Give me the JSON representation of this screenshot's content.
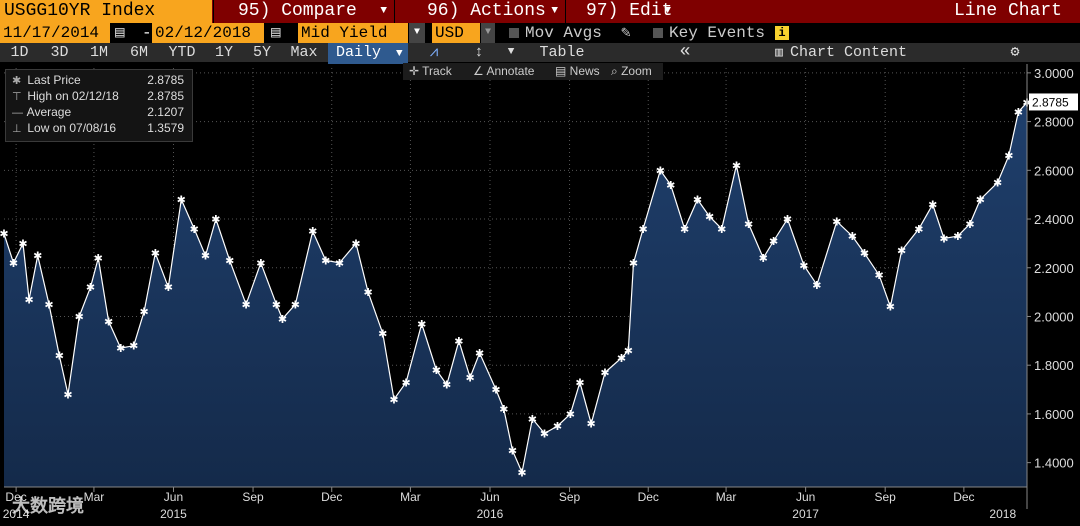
{
  "toolbar": {
    "ticker": "USGG10YR Index",
    "compare": "95) Compare",
    "actions": "96) Actions",
    "edit": "97) Edit",
    "chart_kind": "Line Chart"
  },
  "settings": {
    "start_date": "11/17/2014",
    "end_date": "02/12/2018",
    "dash": "-",
    "field": "Mid Yield",
    "currency": "USD",
    "mov_avgs": "Mov Avgs",
    "key_events": "Key Events",
    "info": "i"
  },
  "periods": {
    "items": [
      "1D",
      "3D",
      "1M",
      "6M",
      "YTD",
      "1Y",
      "5Y",
      "Max"
    ],
    "frequency": "Daily",
    "table": "Table",
    "back": "«",
    "chart_content": "Chart Content",
    "gear": "⚙"
  },
  "tools": {
    "track": "Track",
    "annotate": "Annotate",
    "news": "News",
    "zoom": "Zoom"
  },
  "legend": [
    {
      "label": "Last Price",
      "value": "2.8785",
      "icon": "asterisk-icon"
    },
    {
      "label": "High on 02/12/18",
      "value": "2.8785",
      "icon": "high-marker-icon"
    },
    {
      "label": "Average",
      "value": "2.1207",
      "icon": "average-line-icon"
    },
    {
      "label": "Low on 07/08/16",
      "value": "1.3579",
      "icon": "low-marker-icon"
    }
  ],
  "watermark": "大数跨境",
  "colors": {
    "accent": "#f8a51e",
    "header_red": "#7f0000",
    "area_top": "#1f3f6c",
    "line": "#ffffff",
    "selected": "#2f5a8f"
  },
  "chart_data": {
    "type": "area",
    "title": "",
    "xlabel": "",
    "ylabel": "",
    "ylim": [
      1.3,
      3.02
    ],
    "last_price_label": "2.8785",
    "y_ticks": [
      "1.4000",
      "1.6000",
      "1.8000",
      "2.0000",
      "2.2000",
      "2.4000",
      "2.6000",
      "2.8000",
      "3.0000"
    ],
    "x_month_ticks": [
      {
        "date": "2014-12-01",
        "label": "Dec"
      },
      {
        "date": "2015-03-01",
        "label": "Mar"
      },
      {
        "date": "2015-06-01",
        "label": "Jun"
      },
      {
        "date": "2015-09-01",
        "label": "Sep"
      },
      {
        "date": "2015-12-01",
        "label": "Dec"
      },
      {
        "date": "2016-03-01",
        "label": "Mar"
      },
      {
        "date": "2016-06-01",
        "label": "Jun"
      },
      {
        "date": "2016-09-01",
        "label": "Sep"
      },
      {
        "date": "2016-12-01",
        "label": "Dec"
      },
      {
        "date": "2017-03-01",
        "label": "Mar"
      },
      {
        "date": "2017-06-01",
        "label": "Jun"
      },
      {
        "date": "2017-09-01",
        "label": "Sep"
      },
      {
        "date": "2017-12-01",
        "label": "Dec"
      }
    ],
    "x_year_ticks": [
      {
        "date": "2014-12-01",
        "label": "2014"
      },
      {
        "date": "2015-06-01",
        "label": "2015"
      },
      {
        "date": "2016-06-01",
        "label": "2016"
      },
      {
        "date": "2017-06-01",
        "label": "2017"
      },
      {
        "date": "2018-01-15",
        "label": "2018"
      }
    ],
    "x_range": [
      "2014-11-17",
      "2018-02-12"
    ],
    "series": [
      {
        "name": "Last Price",
        "points": [
          [
            "2014-11-17",
            2.34
          ],
          [
            "2014-11-28",
            2.22
          ],
          [
            "2014-12-09",
            2.3
          ],
          [
            "2014-12-16",
            2.07
          ],
          [
            "2014-12-26",
            2.25
          ],
          [
            "2015-01-08",
            2.05
          ],
          [
            "2015-01-20",
            1.84
          ],
          [
            "2015-01-30",
            1.68
          ],
          [
            "2015-02-12",
            2.0
          ],
          [
            "2015-02-25",
            2.12
          ],
          [
            "2015-03-06",
            2.24
          ],
          [
            "2015-03-18",
            1.98
          ],
          [
            "2015-04-01",
            1.87
          ],
          [
            "2015-04-16",
            1.88
          ],
          [
            "2015-04-28",
            2.02
          ],
          [
            "2015-05-11",
            2.26
          ],
          [
            "2015-05-26",
            2.12
          ],
          [
            "2015-06-10",
            2.48
          ],
          [
            "2015-06-25",
            2.36
          ],
          [
            "2015-07-08",
            2.25
          ],
          [
            "2015-07-20",
            2.4
          ],
          [
            "2015-08-05",
            2.23
          ],
          [
            "2015-08-24",
            2.05
          ],
          [
            "2015-09-10",
            2.22
          ],
          [
            "2015-09-28",
            2.05
          ],
          [
            "2015-10-05",
            1.99
          ],
          [
            "2015-10-20",
            2.05
          ],
          [
            "2015-11-09",
            2.35
          ],
          [
            "2015-11-24",
            2.23
          ],
          [
            "2015-12-10",
            2.22
          ],
          [
            "2015-12-29",
            2.3
          ],
          [
            "2016-01-12",
            2.1
          ],
          [
            "2016-01-29",
            1.93
          ],
          [
            "2016-02-11",
            1.66
          ],
          [
            "2016-02-25",
            1.73
          ],
          [
            "2016-03-14",
            1.97
          ],
          [
            "2016-03-31",
            1.78
          ],
          [
            "2016-04-12",
            1.72
          ],
          [
            "2016-04-26",
            1.9
          ],
          [
            "2016-05-09",
            1.75
          ],
          [
            "2016-05-20",
            1.85
          ],
          [
            "2016-06-08",
            1.7
          ],
          [
            "2016-06-17",
            1.62
          ],
          [
            "2016-06-27",
            1.45
          ],
          [
            "2016-07-08",
            1.36
          ],
          [
            "2016-07-20",
            1.58
          ],
          [
            "2016-08-03",
            1.52
          ],
          [
            "2016-08-18",
            1.55
          ],
          [
            "2016-09-02",
            1.6
          ],
          [
            "2016-09-13",
            1.73
          ],
          [
            "2016-09-26",
            1.56
          ],
          [
            "2016-10-12",
            1.77
          ],
          [
            "2016-10-31",
            1.83
          ],
          [
            "2016-11-08",
            1.86
          ],
          [
            "2016-11-14",
            2.22
          ],
          [
            "2016-11-25",
            2.36
          ],
          [
            "2016-12-15",
            2.6
          ],
          [
            "2016-12-27",
            2.54
          ],
          [
            "2017-01-12",
            2.36
          ],
          [
            "2017-01-27",
            2.48
          ],
          [
            "2017-02-10",
            2.41
          ],
          [
            "2017-02-24",
            2.36
          ],
          [
            "2017-03-13",
            2.62
          ],
          [
            "2017-03-27",
            2.38
          ],
          [
            "2017-04-13",
            2.24
          ],
          [
            "2017-04-25",
            2.31
          ],
          [
            "2017-05-11",
            2.4
          ],
          [
            "2017-05-30",
            2.21
          ],
          [
            "2017-06-14",
            2.13
          ],
          [
            "2017-07-07",
            2.39
          ],
          [
            "2017-07-25",
            2.33
          ],
          [
            "2017-08-08",
            2.26
          ],
          [
            "2017-08-25",
            2.17
          ],
          [
            "2017-09-07",
            2.04
          ],
          [
            "2017-09-20",
            2.27
          ],
          [
            "2017-10-10",
            2.36
          ],
          [
            "2017-10-26",
            2.46
          ],
          [
            "2017-11-08",
            2.32
          ],
          [
            "2017-11-24",
            2.33
          ],
          [
            "2017-12-08",
            2.38
          ],
          [
            "2017-12-20",
            2.48
          ],
          [
            "2018-01-09",
            2.55
          ],
          [
            "2018-01-22",
            2.66
          ],
          [
            "2018-02-02",
            2.84
          ],
          [
            "2018-02-12",
            2.8785
          ]
        ]
      }
    ],
    "grid": true,
    "legend": "top-left"
  }
}
